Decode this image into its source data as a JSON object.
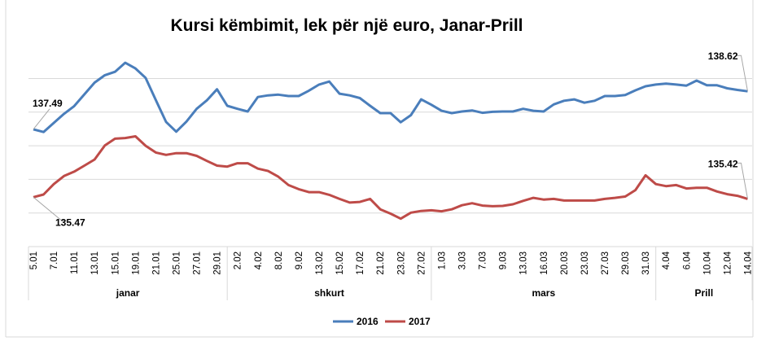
{
  "chart_data": {
    "type": "line",
    "title": "Kursi këmbimit, lek për një euro, Janar-Prill",
    "xlabel": "",
    "ylabel": "",
    "ylim": [
      134,
      140
    ],
    "y_gridlines": [
      135,
      136,
      137,
      138,
      139
    ],
    "grid": true,
    "y_tick_labels_shown": false,
    "legend": "bottom",
    "tick_labels": [
      "5.01",
      "7.01",
      "11.01",
      "13.01",
      "15.01",
      "19.01",
      "21.01",
      "25.01",
      "27.01",
      "29.01",
      "2.02",
      "4.02",
      "8.02",
      "9.02",
      "13.02",
      "15.02",
      "17.02",
      "21.02",
      "23.02",
      "27.02",
      "1.03",
      "3.03",
      "7.03",
      "9.03",
      "13.03",
      "16.03",
      "20.03",
      "23.03",
      "27.03",
      "29.03",
      "31.03",
      "4.04",
      "6.04",
      "10.04",
      "12.04",
      "14.04"
    ],
    "month_groups": [
      {
        "label": "janar",
        "ticks": 10
      },
      {
        "label": "shkurt",
        "ticks": 10
      },
      {
        "label": "mars",
        "ticks": 11
      },
      {
        "label": "Prill",
        "ticks": 5
      }
    ],
    "series": [
      {
        "name": "2016",
        "color": "#4a7ebb",
        "values": [
          137.49,
          137.41,
          137.68,
          137.95,
          138.18,
          138.53,
          138.88,
          139.1,
          139.2,
          139.47,
          139.3,
          139.02,
          138.36,
          137.71,
          137.42,
          137.72,
          138.1,
          138.35,
          138.68,
          138.19,
          138.1,
          138.02,
          138.45,
          138.5,
          138.52,
          138.48,
          138.48,
          138.64,
          138.82,
          138.91,
          138.55,
          138.5,
          138.42,
          138.19,
          137.97,
          137.97,
          137.7,
          137.91,
          138.38,
          138.22,
          138.04,
          137.97,
          138.02,
          138.05,
          137.98,
          138.01,
          138.02,
          138.02,
          138.1,
          138.04,
          138.02,
          138.23,
          138.34,
          138.38,
          138.28,
          138.34,
          138.48,
          138.48,
          138.51,
          138.65,
          138.77,
          138.82,
          138.85,
          138.82,
          138.79,
          138.94,
          138.8,
          138.8,
          138.71,
          138.66,
          138.62
        ],
        "data_labels": [
          {
            "index": 0,
            "text": "137.49"
          },
          {
            "index": 70,
            "text": "138.62"
          }
        ]
      },
      {
        "name": "2017",
        "color": "#be4b48",
        "values": [
          135.47,
          135.55,
          135.86,
          136.1,
          136.23,
          136.41,
          136.59,
          137.01,
          137.21,
          137.23,
          137.28,
          137.0,
          136.8,
          136.73,
          136.78,
          136.78,
          136.7,
          136.55,
          136.41,
          136.38,
          136.48,
          136.48,
          136.32,
          136.25,
          136.08,
          135.83,
          135.71,
          135.62,
          135.62,
          135.54,
          135.42,
          135.31,
          135.33,
          135.42,
          135.11,
          134.98,
          134.83,
          135.01,
          135.06,
          135.08,
          135.05,
          135.11,
          135.23,
          135.29,
          135.22,
          135.2,
          135.21,
          135.26,
          135.36,
          135.45,
          135.4,
          135.42,
          135.37,
          135.37,
          135.37,
          135.37,
          135.42,
          135.45,
          135.49,
          135.68,
          136.12,
          135.86,
          135.8,
          135.83,
          135.73,
          135.75,
          135.75,
          135.64,
          135.56,
          135.51,
          135.42
        ],
        "data_labels": [
          {
            "index": 0,
            "text": "135.47"
          },
          {
            "index": 70,
            "text": "135.42"
          }
        ]
      }
    ]
  }
}
